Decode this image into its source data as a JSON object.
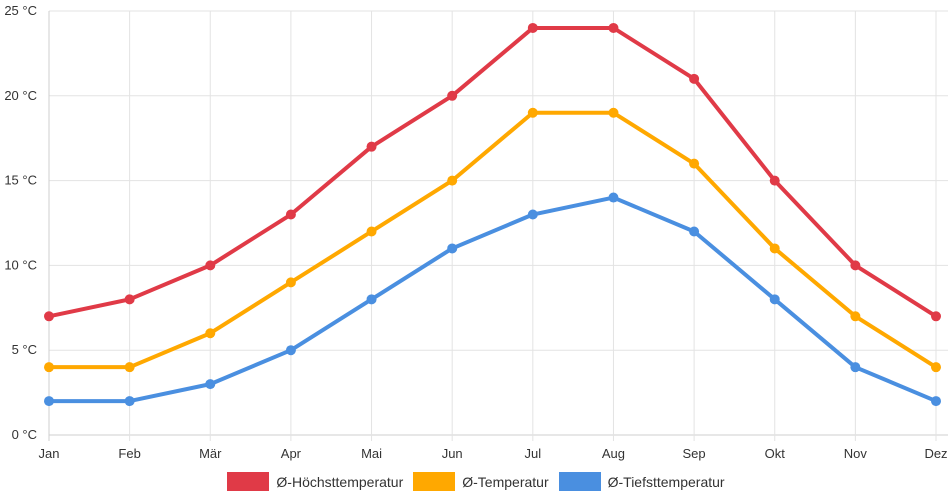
{
  "chart_data": {
    "type": "line",
    "categories": [
      "Jan",
      "Feb",
      "Mär",
      "Apr",
      "Mai",
      "Jun",
      "Jul",
      "Aug",
      "Sep",
      "Okt",
      "Nov",
      "Dez"
    ],
    "y_ticks": [
      "0 °C",
      "5 °C",
      "10 °C",
      "15 °C",
      "20 °C",
      "25 °C"
    ],
    "ylim": [
      0,
      25
    ],
    "grid": true,
    "legend_position": "bottom",
    "series": [
      {
        "name": "Ø-Höchsttemperatur",
        "color": "#e03a47",
        "values": [
          7,
          8,
          10,
          13,
          17,
          20,
          24,
          24,
          21,
          15,
          10,
          7
        ]
      },
      {
        "name": "Ø-Temperatur",
        "color": "#ffa800",
        "values": [
          4,
          4,
          6,
          9,
          12,
          15,
          19,
          19,
          16,
          11,
          7,
          4
        ]
      },
      {
        "name": "Ø-Tiefsttemperatur",
        "color": "#4a8fe0",
        "values": [
          2,
          2,
          3,
          5,
          8,
          11,
          13,
          14,
          12,
          8,
          4,
          2
        ]
      }
    ]
  }
}
